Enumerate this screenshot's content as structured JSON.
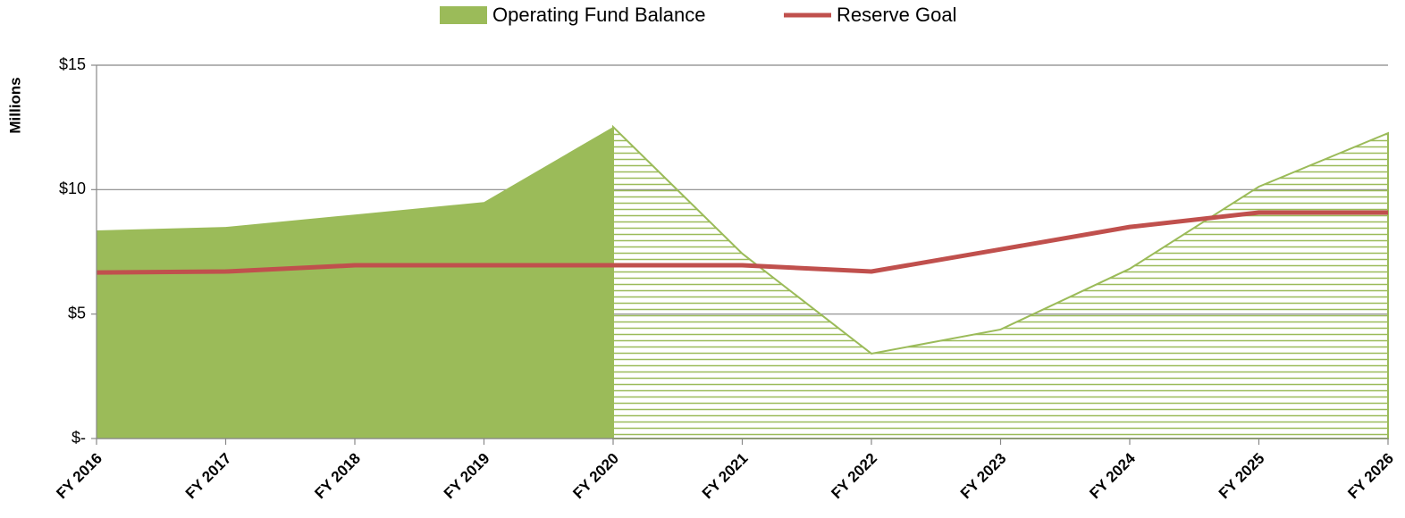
{
  "chart_data": {
    "type": "area-line",
    "categories": [
      "FY 2016",
      "FY 2017",
      "FY 2018",
      "FY 2019",
      "FY 2020",
      "FY 2021",
      "FY 2022",
      "FY 2023",
      "FY 2024",
      "FY 2025",
      "FY 2026"
    ],
    "y_label": "Millions",
    "series": [
      {
        "name": "Operating Fund Balance",
        "type": "area",
        "color": "#9bbb59",
        "hatched_from": "FY 2020",
        "values": [
          8.36,
          8.5,
          9.0,
          9.5,
          12.52,
          7.43,
          3.41,
          4.38,
          6.82,
          10.12,
          12.27
        ]
      },
      {
        "name": "Reserve Goal",
        "type": "line",
        "color": "#c0504d",
        "values": [
          6.67,
          6.71,
          6.96,
          6.96,
          6.96,
          6.96,
          6.71,
          7.6,
          8.5,
          9.08,
          9.08
        ]
      }
    ],
    "ylim": [
      0,
      15
    ],
    "yticks": [
      {
        "value": 0,
        "label": "$-"
      },
      {
        "value": 5,
        "label": "$5"
      },
      {
        "value": 10,
        "label": "$10"
      },
      {
        "value": 15,
        "label": "$15"
      }
    ],
    "grid": true,
    "legend": "top"
  }
}
